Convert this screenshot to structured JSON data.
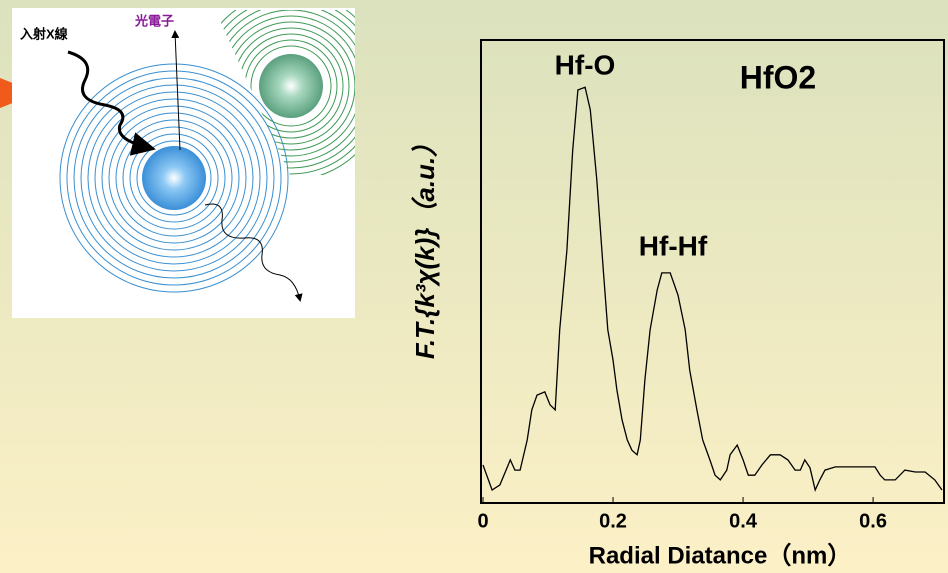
{
  "diagram": {
    "labels": [
      "入射X線",
      "光電子"
    ]
  },
  "chart_data": {
    "type": "line",
    "annotations": [
      "Hf-O",
      "Hf-Hf",
      "HfO2"
    ],
    "x_label": "Radial Diatance（nm）",
    "y_label": "F.T.{k³χ(k)}（a.u.）",
    "xlim": [
      0,
      0.706
    ],
    "ylim": [
      0,
      100
    ],
    "xticks": [
      0,
      0.2,
      0.4,
      0.6
    ],
    "color": "#000000",
    "x": [
      0,
      0.014,
      0.026,
      0.042,
      0.049,
      0.057,
      0.068,
      0.075,
      0.083,
      0.095,
      0.103,
      0.111,
      0.118,
      0.129,
      0.138,
      0.146,
      0.157,
      0.165,
      0.175,
      0.185,
      0.192,
      0.2,
      0.206,
      0.214,
      0.222,
      0.229,
      0.237,
      0.242,
      0.249,
      0.257,
      0.268,
      0.275,
      0.288,
      0.3,
      0.311,
      0.318,
      0.329,
      0.338,
      0.349,
      0.357,
      0.365,
      0.375,
      0.38,
      0.391,
      0.4,
      0.408,
      0.418,
      0.429,
      0.442,
      0.457,
      0.469,
      0.48,
      0.488,
      0.495,
      0.503,
      0.511,
      0.518,
      0.526,
      0.542,
      0.603,
      0.611,
      0.618,
      0.634,
      0.649,
      0.665,
      0.68,
      0.695,
      0.706
    ],
    "values": [
      8.2,
      2.8,
      3.9,
      9.3,
      7.1,
      7.1,
      13.6,
      20.1,
      23.3,
      24.0,
      21.2,
      20.1,
      37.4,
      54.6,
      76.2,
      89.2,
      89.8,
      84.9,
      69.8,
      50.3,
      37.4,
      30.9,
      24.4,
      17.9,
      13.6,
      11.4,
      10.4,
      13.6,
      26.6,
      37.4,
      46.0,
      49.7,
      49.7,
      44.9,
      37.4,
      28.7,
      20.1,
      13.6,
      9.3,
      6.0,
      5.0,
      7.1,
      10.4,
      12.5,
      9.3,
      6.0,
      6.0,
      8.2,
      10.4,
      10.4,
      9.3,
      7.1,
      7.1,
      9.3,
      7.6,
      2.8,
      5.0,
      7.1,
      7.8,
      7.8,
      6.0,
      5.0,
      5.0,
      7.1,
      6.7,
      6.7,
      5.0,
      2.8
    ]
  }
}
